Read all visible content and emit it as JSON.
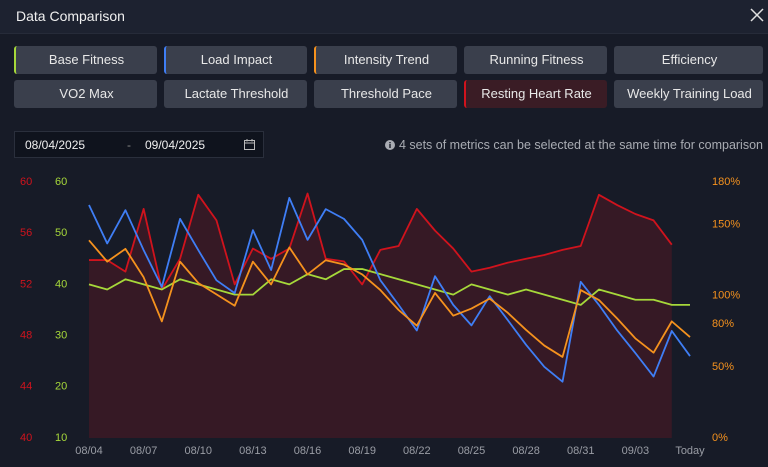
{
  "title": "Data Comparison",
  "buttons": [
    "Running Fitness",
    "Efficiency",
    "VO2 Max",
    "Lactate Threshold",
    "Threshold Pace",
    "Weekly Training Load"
  ],
  "date_range": {
    "start": "08/04/2025",
    "separator": "-",
    "end": "09/04/2025"
  },
  "info": "4 sets of metrics can be selected at the same time for comparison",
  "chart_data": {
    "type": "line",
    "categories": [
      "08/04",
      null,
      null,
      "08/07",
      null,
      null,
      "08/10",
      null,
      null,
      "08/13",
      null,
      null,
      "08/16",
      null,
      null,
      "08/19",
      null,
      null,
      "08/22",
      null,
      null,
      "08/25",
      null,
      null,
      "08/28",
      null,
      null,
      "08/31",
      null,
      null,
      "09/03",
      null,
      null,
      "Today"
    ],
    "ylim": [
      10,
      60
    ],
    "yticks": [
      10,
      20,
      30,
      40,
      50,
      60
    ],
    "y2lim": [
      0,
      180
    ],
    "y2ticks": [
      {
        "value": 0,
        "label": "0%"
      },
      {
        "value": 50,
        "label": "50%"
      },
      {
        "value": 80,
        "label": "80%"
      },
      {
        "value": 100,
        "label": "100%"
      },
      {
        "value": 150,
        "label": "150%"
      },
      {
        "value": 180,
        "label": "180%"
      }
    ],
    "y3lim": [
      40,
      60
    ],
    "y3ticks": [
      40,
      44,
      48,
      52,
      56,
      60
    ],
    "series": [
      {
        "name": "Base Fitness",
        "color": "#a6d83a",
        "axis": "y",
        "values": [
          40,
          39,
          41,
          40,
          39,
          41,
          40,
          39,
          38,
          38,
          41,
          40,
          42,
          41,
          43,
          43,
          42,
          41,
          40,
          39,
          38,
          40,
          39,
          38,
          39,
          38,
          37,
          36,
          39,
          38,
          37,
          37,
          36,
          36
        ]
      },
      {
        "name": "Load Impact",
        "color": "#3f7ef5",
        "axis": "y",
        "values": [
          55.5,
          48,
          54.5,
          46.7,
          39.5,
          52.8,
          46.7,
          40.8,
          38.3,
          50.6,
          42.8,
          56.9,
          48.7,
          54.7,
          52.8,
          48.7,
          40.8,
          36,
          31,
          41.6,
          36,
          32,
          37.7,
          33,
          28.2,
          23.9,
          21,
          40.5,
          36,
          31,
          26.6,
          22,
          30.9,
          26
        ]
      },
      {
        "name": "Intensity Trend",
        "color": "#f5921e",
        "axis": "y2",
        "values": [
          139,
          124,
          133,
          113,
          82,
          124,
          109,
          101,
          93,
          124,
          108,
          134,
          115,
          125,
          122,
          115,
          104,
          90,
          79,
          102,
          86,
          91,
          98,
          88,
          76,
          65,
          57,
          104,
          97,
          84,
          70,
          60,
          82,
          71
        ]
      },
      {
        "name": "Resting Heart Rate",
        "color": "#d0131d",
        "axis": "y3",
        "values": [
          53.9,
          53.9,
          53,
          57.9,
          51.6,
          54,
          59,
          57,
          52,
          54.8,
          54,
          54.8,
          59.1,
          54,
          53.8,
          52,
          54.7,
          55,
          57.9,
          56.2,
          54.8,
          53,
          53.3,
          53.7,
          54,
          54.3,
          54.7,
          55,
          59,
          58.2,
          57.5,
          57,
          55.1,
          null
        ]
      }
    ]
  }
}
